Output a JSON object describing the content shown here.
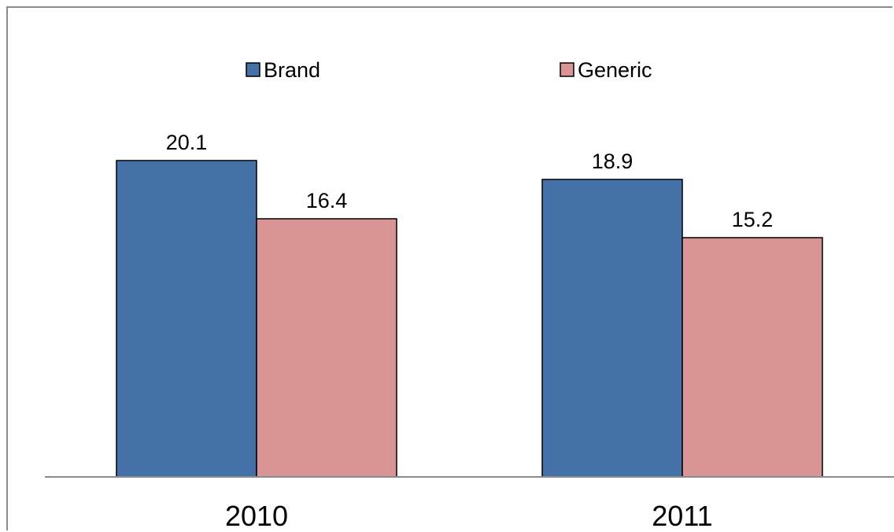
{
  "chart_data": {
    "type": "bar",
    "categories": [
      "2010",
      "2011"
    ],
    "series": [
      {
        "name": "Brand",
        "values": [
          20.1,
          18.9
        ],
        "color": "#4472a8"
      },
      {
        "name": "Generic",
        "values": [
          16.4,
          15.2
        ],
        "color": "#d99594"
      }
    ],
    "data_labels": [
      [
        "20.1",
        "18.9"
      ],
      [
        "16.4",
        "15.2"
      ]
    ],
    "ylim": [
      0,
      30.2
    ],
    "grid": false,
    "legend_position": "top"
  }
}
